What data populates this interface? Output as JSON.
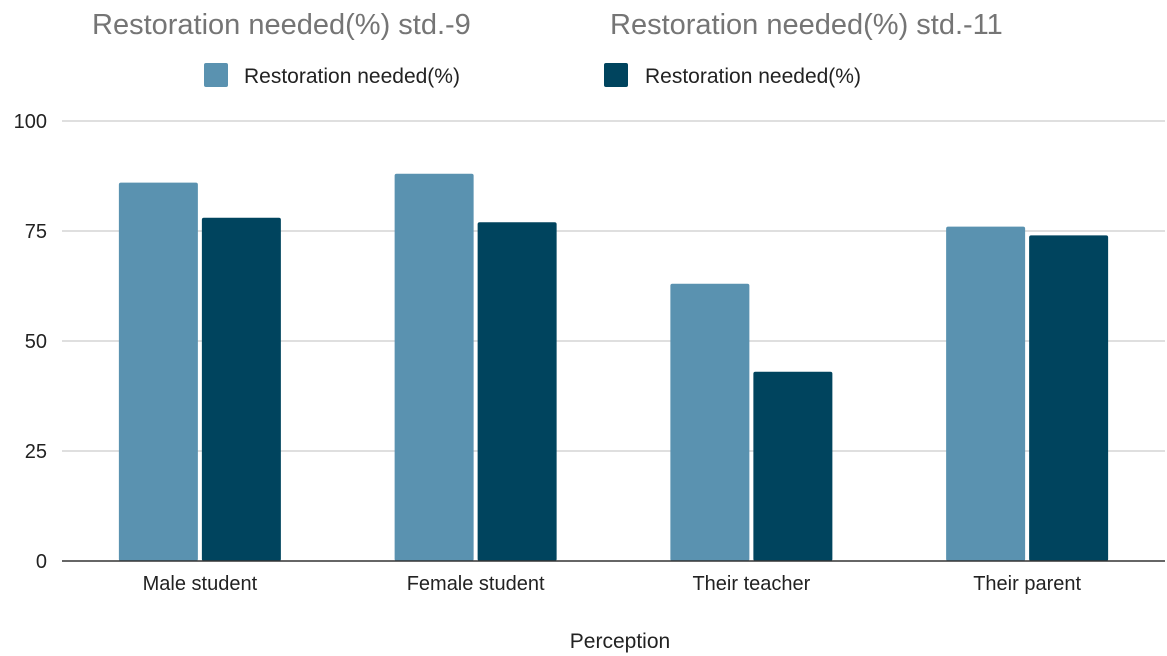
{
  "chart_data": {
    "type": "bar",
    "titles": [
      "Restoration needed(%) std.-9",
      "Restoration needed(%) std.-11"
    ],
    "xlabel": "Perception",
    "ylabel": "",
    "categories": [
      "Male student",
      "Female student",
      "Their teacher",
      "Their parent"
    ],
    "series": [
      {
        "name": "Restoration needed(%)",
        "color": "#5a92b0",
        "values": [
          86,
          88,
          63,
          76
        ]
      },
      {
        "name": "Restoration needed(%)",
        "color": "#00445e",
        "values": [
          78,
          77,
          43,
          74
        ]
      }
    ],
    "ylim": [
      0,
      100
    ],
    "yticks": [
      "0",
      "25",
      "50",
      "75",
      "100"
    ],
    "grid": true,
    "legend_position": "top"
  }
}
